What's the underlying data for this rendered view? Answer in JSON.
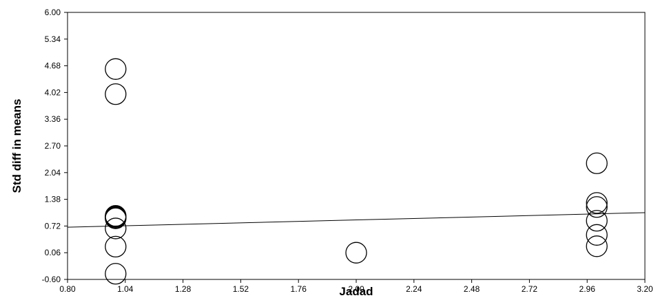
{
  "chart_data": {
    "type": "scatter",
    "title": "",
    "xlabel": "Jadad",
    "ylabel": "Std diff in means",
    "xlim": [
      0.8,
      3.2
    ],
    "ylim": [
      -0.6,
      6.0
    ],
    "x_ticks": [
      "0.80",
      "1.04",
      "1.28",
      "1.52",
      "1.76",
      "2.00",
      "2.24",
      "2.48",
      "2.72",
      "2.96",
      "3.20"
    ],
    "y_ticks": [
      "-0.60",
      "0.06",
      "0.72",
      "1.38",
      "2.04",
      "2.70",
      "3.36",
      "4.02",
      "4.68",
      "5.34",
      "6.00"
    ],
    "grid": false,
    "marker": "open-circle",
    "points": [
      {
        "x": 1.0,
        "y": 4.6
      },
      {
        "x": 1.0,
        "y": 3.98
      },
      {
        "x": 1.0,
        "y": 0.97
      },
      {
        "x": 1.0,
        "y": 0.95
      },
      {
        "x": 1.0,
        "y": 0.93
      },
      {
        "x": 1.0,
        "y": 0.91
      },
      {
        "x": 1.0,
        "y": 0.66
      },
      {
        "x": 1.0,
        "y": 0.21
      },
      {
        "x": 1.0,
        "y": -0.46
      },
      {
        "x": 2.0,
        "y": 0.06
      },
      {
        "x": 3.0,
        "y": 2.27
      },
      {
        "x": 3.0,
        "y": 1.29
      },
      {
        "x": 3.0,
        "y": 1.19
      },
      {
        "x": 3.0,
        "y": 0.85
      },
      {
        "x": 3.0,
        "y": 0.5
      },
      {
        "x": 3.0,
        "y": 0.22
      }
    ],
    "regression_line": {
      "x": [
        0.8,
        3.2
      ],
      "y": [
        0.69,
        1.05
      ]
    }
  }
}
